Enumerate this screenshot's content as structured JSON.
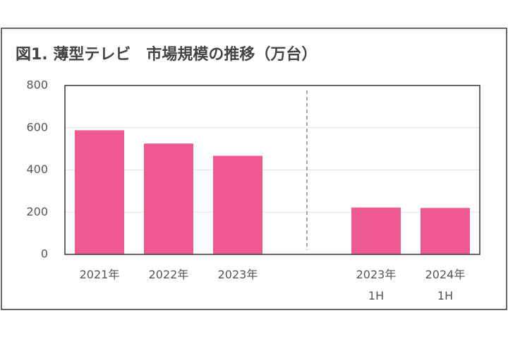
{
  "chart_data": {
    "type": "bar",
    "title": "図1. 薄型テレビ　市場規模の推移（万台）",
    "categories": [
      [
        "2021年"
      ],
      [
        "2022年"
      ],
      [
        "2023年"
      ],
      null,
      [
        "2023年",
        "1H"
      ],
      [
        "2024年",
        "1H"
      ]
    ],
    "values": [
      588,
      525,
      467,
      null,
      222,
      220
    ],
    "color": "#ef5a93",
    "ylim": [
      0,
      800
    ],
    "yticks": [
      0,
      200,
      400,
      600,
      800
    ],
    "grid": true
  }
}
